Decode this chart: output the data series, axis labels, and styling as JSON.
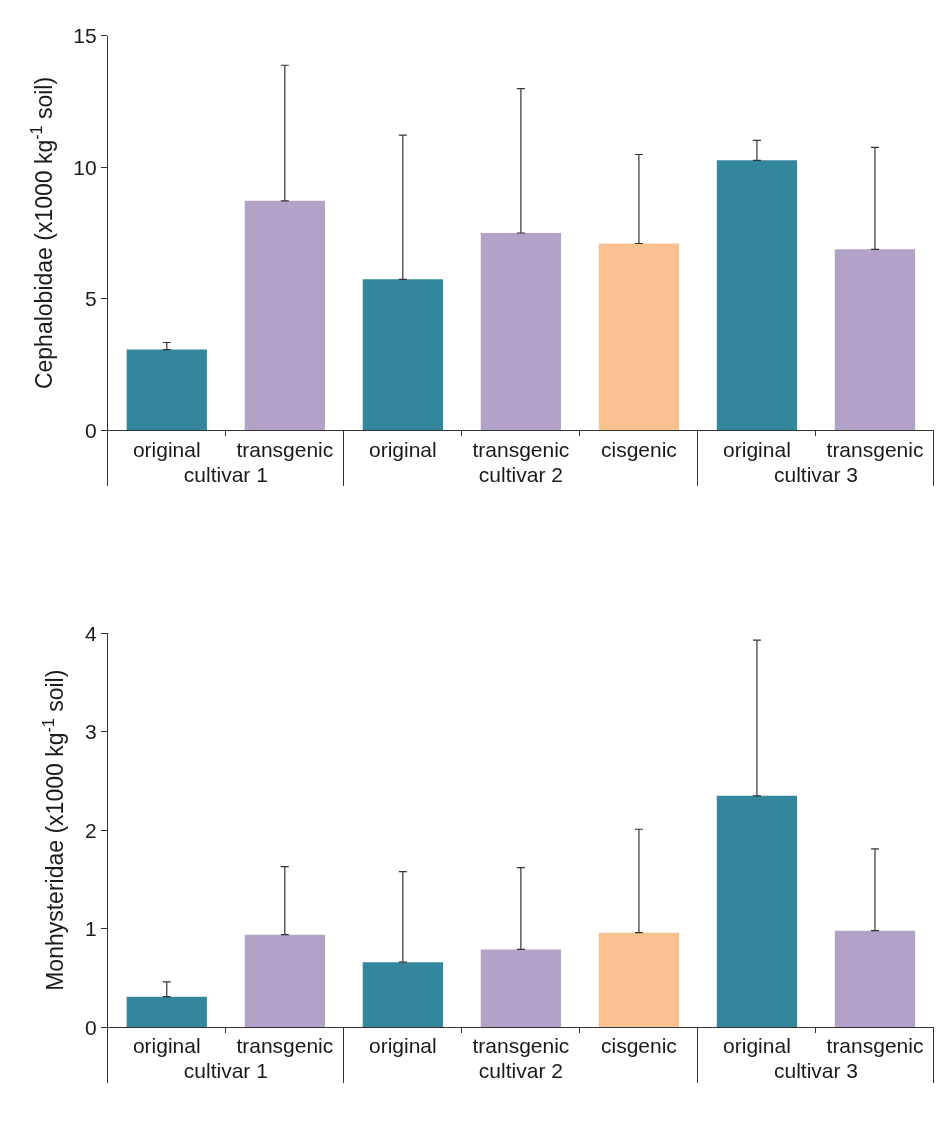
{
  "chart_data": [
    {
      "type": "bar",
      "ylabel": "Cephalobidae (x1000 kg$^{-1}$ soil)",
      "categories": [
        "original",
        "transgenic",
        "original",
        "transgenic",
        "cisgenic",
        "original",
        "transgenic"
      ],
      "values": [
        3.07,
        8.72,
        5.74,
        7.5,
        7.1,
        10.26,
        6.88
      ],
      "colors": [
        "#34869c",
        "#b3a2c8",
        "#34869c",
        "#b3a2c8",
        "#f9c190",
        "#34869c",
        "#b3a2c8"
      ],
      "errors": [
        [
          3.07,
          3.34
        ],
        [
          8.72,
          13.87
        ],
        [
          5.74,
          11.22
        ],
        [
          7.5,
          12.98
        ],
        [
          7.1,
          10.48
        ],
        [
          10.26,
          11.02
        ],
        [
          6.88,
          10.75
        ]
      ],
      "annotations": [
        "cultivar 1",
        "cultivar 2",
        "cultivar 3"
      ],
      "ylim": [
        0,
        15
      ],
      "yticks": [
        0,
        5,
        10,
        15
      ]
    },
    {
      "type": "bar",
      "ylabel": "Monhysteridae (x1000 kg$^{-1}$ soil)",
      "categories": [
        "original",
        "transgenic",
        "original",
        "transgenic",
        "cisgenic",
        "original",
        "transgenic"
      ],
      "values": [
        0.31,
        0.94,
        0.66,
        0.79,
        0.96,
        2.35,
        0.98
      ],
      "colors": [
        "#34869c",
        "#b3a2c8",
        "#34869c",
        "#b3a2c8",
        "#f9c190",
        "#34869c",
        "#b3a2c8"
      ],
      "errors": [
        [
          0.31,
          0.46
        ],
        [
          0.94,
          1.63
        ],
        [
          0.66,
          1.58
        ],
        [
          0.79,
          1.62
        ],
        [
          0.96,
          2.01
        ],
        [
          2.35,
          3.93
        ],
        [
          0.98,
          1.81
        ]
      ],
      "annotations": [
        "cultivar 1",
        "cultivar 2",
        "cultivar 3"
      ],
      "ylim": [
        0,
        4
      ],
      "yticks": [
        0,
        1,
        2,
        3,
        4
      ]
    }
  ]
}
